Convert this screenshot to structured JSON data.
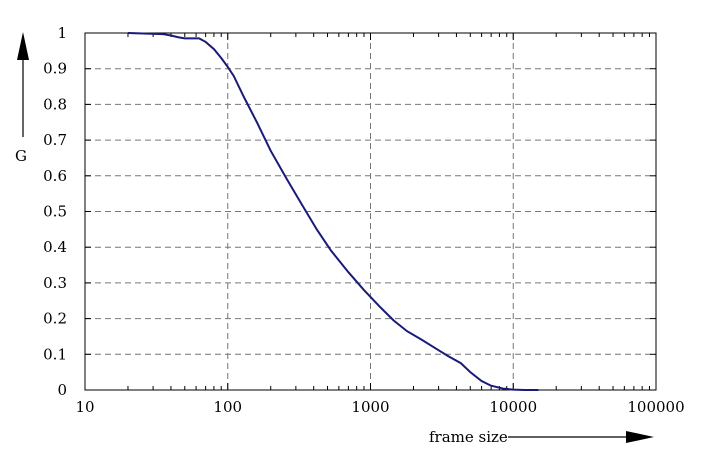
{
  "chart_data": {
    "type": "line",
    "x_scale": "log",
    "xlabel": "frame size",
    "ylabel": "G",
    "xlim": [
      10,
      100000
    ],
    "ylim": [
      0,
      1
    ],
    "x_ticks": [
      {
        "value": 10,
        "label": "10"
      },
      {
        "value": 100,
        "label": "100"
      },
      {
        "value": 1000,
        "label": "1000"
      },
      {
        "value": 10000,
        "label": "10000"
      },
      {
        "value": 100000,
        "label": "100000"
      }
    ],
    "y_ticks": [
      {
        "value": 0,
        "label": "0"
      },
      {
        "value": 0.1,
        "label": "0.1"
      },
      {
        "value": 0.2,
        "label": "0.2"
      },
      {
        "value": 0.3,
        "label": "0.3"
      },
      {
        "value": 0.4,
        "label": "0.4"
      },
      {
        "value": 0.5,
        "label": "0.5"
      },
      {
        "value": 0.6,
        "label": "0.6"
      },
      {
        "value": 0.7,
        "label": "0.7"
      },
      {
        "value": 0.8,
        "label": "0.8"
      },
      {
        "value": 0.9,
        "label": "0.9"
      },
      {
        "value": 1,
        "label": "1"
      }
    ],
    "grid": "dashed",
    "series": [
      {
        "color": "#1a1a7a",
        "x": [
          20,
          35,
          40,
          45,
          50,
          63,
          70,
          80,
          90,
          100,
          110,
          130,
          160,
          200,
          260,
          330,
          420,
          530,
          700,
          900,
          1150,
          1450,
          1800,
          2300,
          2900,
          3500,
          4300,
          5000,
          6000,
          7000,
          8500,
          10000,
          12000,
          15000
        ],
        "y": [
          1.0,
          0.997,
          0.993,
          0.988,
          0.985,
          0.985,
          0.975,
          0.955,
          0.93,
          0.905,
          0.88,
          0.82,
          0.75,
          0.67,
          0.59,
          0.52,
          0.45,
          0.39,
          0.33,
          0.28,
          0.235,
          0.195,
          0.165,
          0.14,
          0.115,
          0.095,
          0.075,
          0.05,
          0.025,
          0.012,
          0.004,
          0.001,
          0.0,
          0.0
        ]
      }
    ]
  }
}
